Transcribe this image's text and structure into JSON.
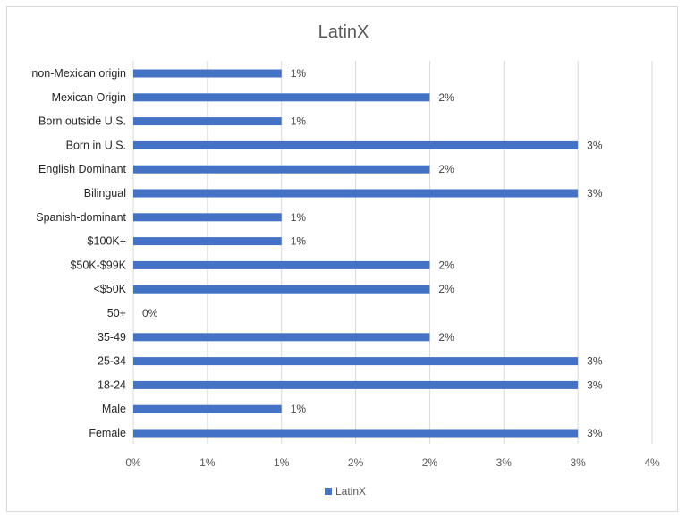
{
  "chart_data": {
    "type": "bar",
    "orientation": "horizontal",
    "title": "LatinX",
    "categories": [
      "non-Mexican origin",
      "Mexican Origin",
      "Born outside U.S.",
      "Born in U.S.",
      "English Dominant",
      "Bilingual",
      "Spanish-dominant",
      "$100K+",
      "$50K-$99K",
      "<$50K",
      "50+",
      "35-49",
      "25-34",
      "18-24",
      "Male",
      "Female"
    ],
    "series": [
      {
        "name": "LatinX",
        "color": "#4472c4",
        "values": [
          1,
          2,
          1,
          3,
          2,
          3,
          1,
          1,
          2,
          2,
          0,
          2,
          3,
          3,
          1,
          3
        ],
        "labels": [
          "1%",
          "2%",
          "1%",
          "3%",
          "2%",
          "3%",
          "1%",
          "1%",
          "2%",
          "2%",
          "0%",
          "2%",
          "3%",
          "3%",
          "1%",
          "3%"
        ]
      }
    ],
    "x_ticks": [
      "0%",
      "1%",
      "1%",
      "2%",
      "2%",
      "3%",
      "3%",
      "4%"
    ],
    "xlim": [
      0,
      3.5
    ],
    "grid": true,
    "legend_position": "bottom"
  }
}
